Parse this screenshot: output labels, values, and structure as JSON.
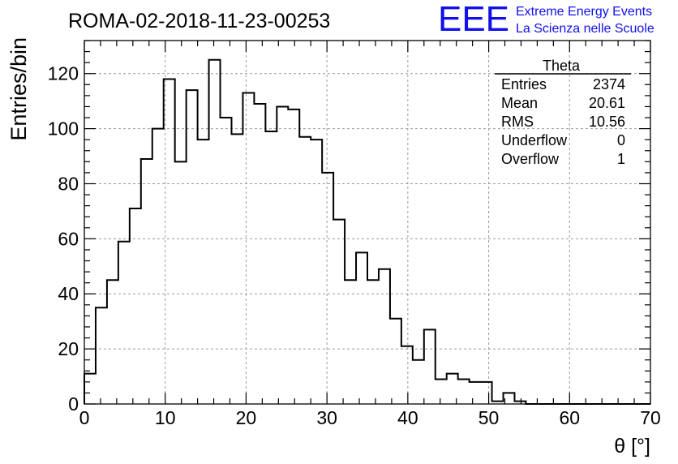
{
  "chart_data": {
    "type": "bar",
    "title": "ROMA-02-2018-11-23-00253",
    "xlabel": "θ [°]",
    "ylabel": "Entries/bin",
    "xlim": [
      0,
      70
    ],
    "ylim": [
      0,
      132
    ],
    "bin_width": 1.4,
    "grid": true,
    "xticks": [
      0,
      10,
      20,
      30,
      40,
      50,
      60,
      70
    ],
    "yticks": [
      0,
      20,
      40,
      60,
      80,
      100,
      120
    ],
    "values": [
      11,
      35,
      45,
      59,
      71,
      89,
      100,
      118,
      88,
      114,
      96,
      125,
      104,
      98,
      113,
      109,
      99,
      108,
      107,
      97,
      96,
      84,
      67,
      45,
      55,
      45,
      49,
      31,
      21,
      16,
      27,
      9,
      11,
      9,
      8,
      8,
      1,
      4,
      1,
      0,
      0,
      0,
      0,
      0,
      0,
      0,
      0,
      0,
      0,
      0
    ],
    "stats": {
      "name": "Theta",
      "rows": [
        {
          "label": "Entries",
          "value": "2374"
        },
        {
          "label": "Mean",
          "value": "20.61"
        },
        {
          "label": "RMS",
          "value": "10.56"
        },
        {
          "label": "Underflow",
          "value": "0"
        },
        {
          "label": "Overflow",
          "value": "1"
        }
      ]
    }
  },
  "logo": {
    "text": "EEE",
    "line1": "Extreme Energy Events",
    "line2": "La Scienza nelle Scuole",
    "color": "#1010ee"
  }
}
